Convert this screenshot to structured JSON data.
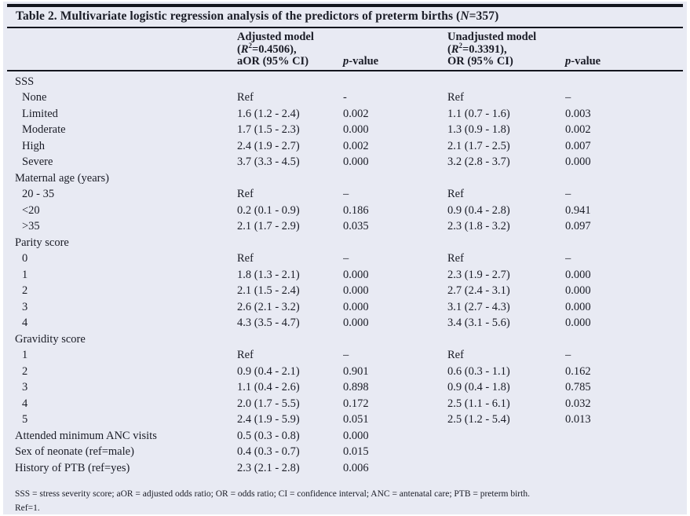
{
  "page": {
    "background": "#ffffff",
    "card_background": "#e8eaf3",
    "text_color": "#1a1c26",
    "rule_color": "#14161e"
  },
  "table": {
    "title": "Table 2. Multivariate logistic regression analysis of the predictors of preterm births (N=357)",
    "header": {
      "variable_label": "",
      "adjusted_lines": [
        "Adjusted model",
        "(R²=0.4506),",
        "aOR (95% CI)"
      ],
      "p_adjusted": "p-value",
      "unadjusted_lines": [
        "Unadjusted model",
        "(R²=0.3391),",
        "OR (95% CI)"
      ],
      "p_unadjusted": "p-value"
    },
    "rows": [
      {
        "label": "SSS",
        "indent": false,
        "cells": [
          "",
          "",
          "",
          ""
        ]
      },
      {
        "label": "None",
        "indent": true,
        "cells": [
          "Ref",
          "-",
          "Ref",
          "–"
        ]
      },
      {
        "label": "Limited",
        "indent": true,
        "cells": [
          "1.6 (1.2 - 2.4)",
          "0.002",
          "1.1 (0.7 - 1.6)",
          "0.003"
        ]
      },
      {
        "label": "Moderate",
        "indent": true,
        "cells": [
          "1.7 (1.5 - 2.3)",
          "0.000",
          "1.3 (0.9 - 1.8)",
          "0.002"
        ]
      },
      {
        "label": "High",
        "indent": true,
        "cells": [
          "2.4 (1.9 - 2.7)",
          "0.002",
          "2.1 (1.7 - 2.5)",
          "0.007"
        ]
      },
      {
        "label": "Severe",
        "indent": true,
        "cells": [
          "3.7 (3.3 - 4.5)",
          "0.000",
          "3.2 (2.8 - 3.7)",
          "0.000"
        ]
      },
      {
        "label": "Maternal age (years)",
        "indent": false,
        "cells": [
          "",
          "",
          "",
          ""
        ]
      },
      {
        "label": "20 - 35",
        "indent": true,
        "cells": [
          "Ref",
          "–",
          "Ref",
          "–"
        ]
      },
      {
        "label": "<20",
        "indent": true,
        "cells": [
          "0.2 (0.1 - 0.9)",
          "0.186",
          "0.9 (0.4 - 2.8)",
          "0.941"
        ]
      },
      {
        "label": ">35",
        "indent": true,
        "cells": [
          "2.1 (1.7 - 2.9)",
          "0.035",
          "2.3 (1.8 - 3.2)",
          "0.097"
        ]
      },
      {
        "label": "Parity score",
        "indent": false,
        "cells": [
          "",
          "",
          "",
          ""
        ]
      },
      {
        "label": "0",
        "indent": true,
        "cells": [
          "Ref",
          "–",
          "Ref",
          "–"
        ]
      },
      {
        "label": "1",
        "indent": true,
        "cells": [
          "1.8 (1.3 - 2.1)",
          "0.000",
          "2.3 (1.9 - 2.7)",
          "0.000"
        ]
      },
      {
        "label": "2",
        "indent": true,
        "cells": [
          "2.1 (1.5 - 2.4)",
          "0.000",
          "2.7 (2.4 - 3.1)",
          "0.000"
        ]
      },
      {
        "label": "3",
        "indent": true,
        "cells": [
          "2.6 (2.1 - 3.2)",
          "0.000",
          "3.1 (2.7 - 4.3)",
          "0.000"
        ]
      },
      {
        "label": "4",
        "indent": true,
        "cells": [
          "4.3 (3.5 - 4.7)",
          "0.000",
          "3.4 (3.1 - 5.6)",
          "0.000"
        ]
      },
      {
        "label": "Gravidity score",
        "indent": false,
        "cells": [
          "",
          "",
          "",
          ""
        ]
      },
      {
        "label": "1",
        "indent": true,
        "cells": [
          "Ref",
          "–",
          "Ref",
          "–"
        ]
      },
      {
        "label": "2",
        "indent": true,
        "cells": [
          "0.9 (0.4 - 2.1)",
          "0.901",
          "0.6 (0.3 - 1.1)",
          "0.162"
        ]
      },
      {
        "label": "3",
        "indent": true,
        "cells": [
          "1.1 (0.4 - 2.6)",
          "0.898",
          "0.9 (0.4 - 1.8)",
          "0.785"
        ]
      },
      {
        "label": "4",
        "indent": true,
        "cells": [
          "2.0 (1.7 - 5.5)",
          "0.172",
          "2.5 (1.1 - 6.1)",
          "0.032"
        ]
      },
      {
        "label": "5",
        "indent": true,
        "cells": [
          "2.4 (1.9 - 5.9)",
          "0.051",
          "2.5 (1.2 - 5.4)",
          "0.013"
        ]
      },
      {
        "label": "Attended minimum ANC visits",
        "indent": false,
        "cells": [
          "0.5 (0.3 - 0.8)",
          "0.000",
          "",
          ""
        ]
      },
      {
        "label": "Sex of neonate (ref=male)",
        "indent": false,
        "cells": [
          "0.4 (0.3 - 0.7)",
          "0.015",
          "",
          ""
        ]
      },
      {
        "label": "History of PTB (ref=yes)",
        "indent": false,
        "cells": [
          "2.3 (2.1 - 2.8)",
          "0.006",
          "",
          ""
        ]
      }
    ],
    "footnotes": [
      "SSS = stress severity score; aOR = adjusted odds ratio; OR = odds ratio; CI = confidence interval; ANC = antenatal care; PTB = preterm birth.",
      "Ref=1."
    ]
  }
}
